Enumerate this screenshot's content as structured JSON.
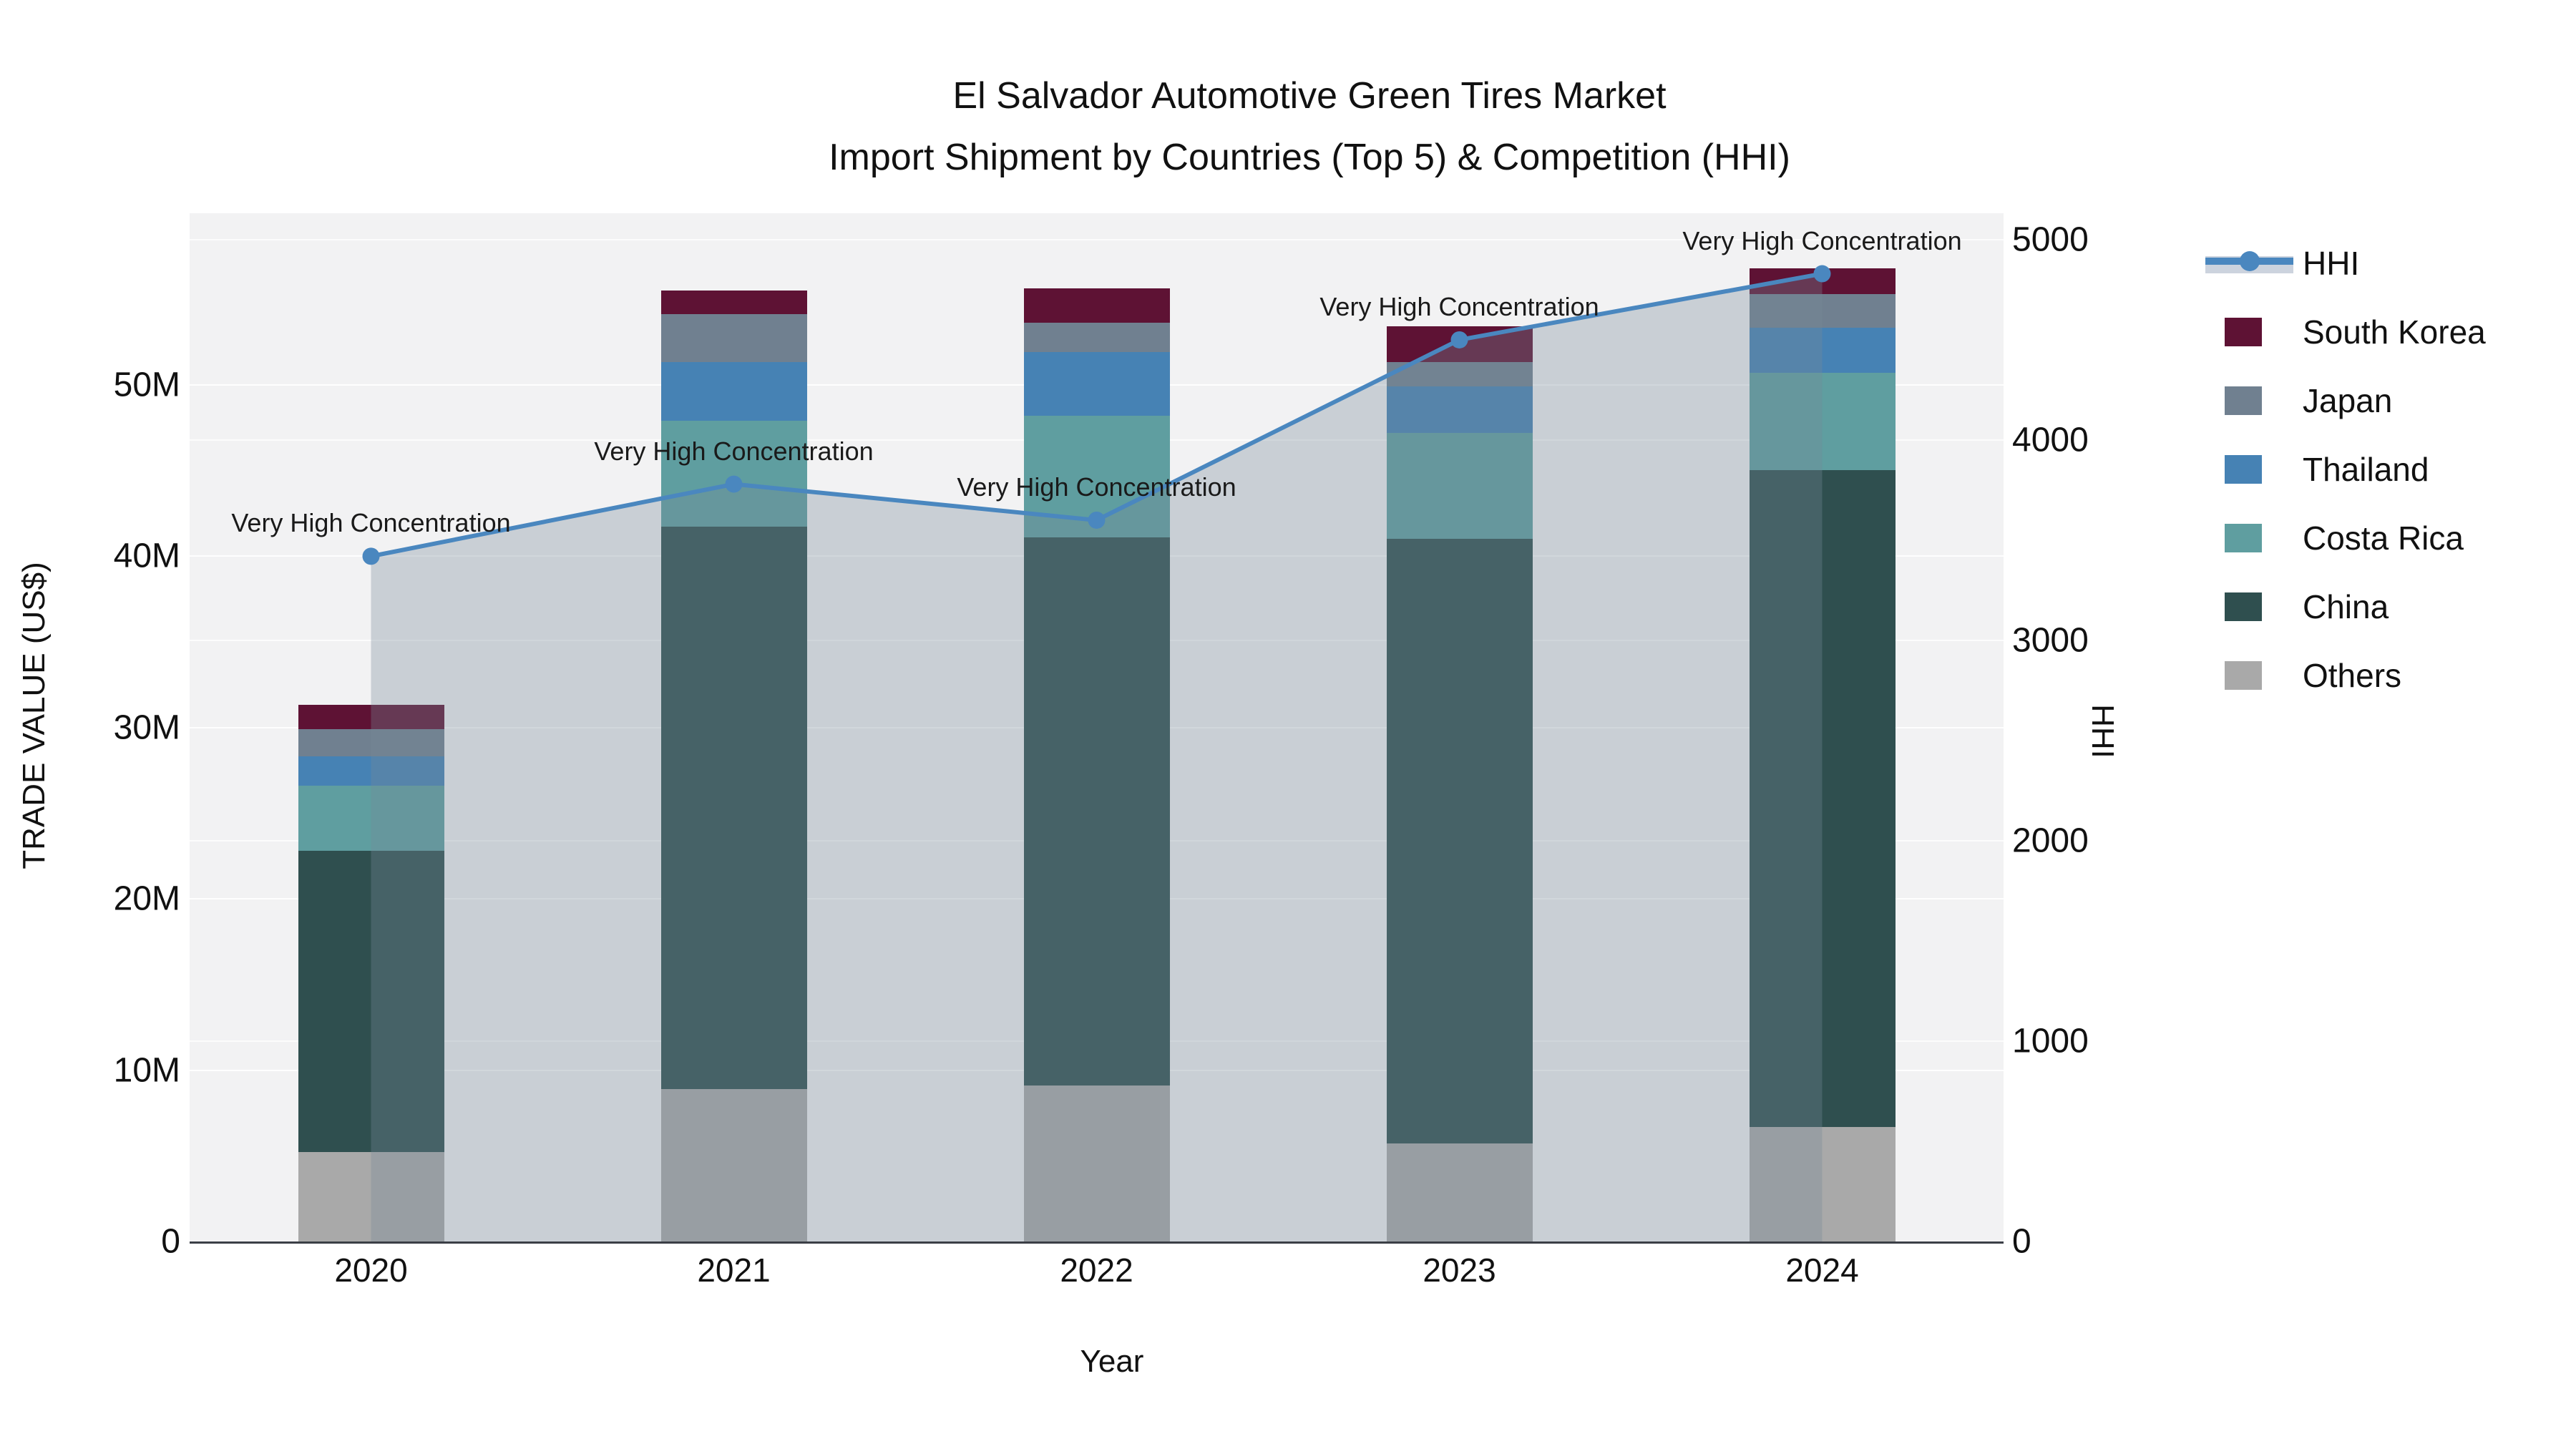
{
  "title": {
    "line1": "El Salvador Automotive Green Tires Market",
    "line2": "Import Shipment by Countries (Top 5) & Competition (HHI)"
  },
  "axes": {
    "x": {
      "title": "Year",
      "categories": [
        "2020",
        "2021",
        "2022",
        "2023",
        "2024"
      ]
    },
    "y_left": {
      "title": "TRADE VALUE (US$)",
      "tick_labels": [
        "0",
        "10M",
        "20M",
        "30M",
        "40M",
        "50M"
      ],
      "tick_values_musd": [
        0,
        10,
        20,
        30,
        40,
        50
      ],
      "range_musd": [
        0,
        60
      ]
    },
    "y_right": {
      "title": "HHI",
      "tick_labels": [
        "0",
        "1000",
        "2000",
        "3000",
        "4000",
        "5000"
      ],
      "tick_values": [
        0,
        1000,
        2000,
        3000,
        4000,
        5000
      ],
      "range": [
        0,
        5132
      ]
    }
  },
  "legend": {
    "items": [
      {
        "label": "HHI",
        "kind": "line",
        "color_key": "hhi_line"
      },
      {
        "label": "South Korea",
        "kind": "swatch",
        "color_key": "south_korea"
      },
      {
        "label": "Japan",
        "kind": "swatch",
        "color_key": "japan"
      },
      {
        "label": "Thailand",
        "kind": "swatch",
        "color_key": "thailand"
      },
      {
        "label": "Costa Rica",
        "kind": "swatch",
        "color_key": "costa_rica"
      },
      {
        "label": "China",
        "kind": "swatch",
        "color_key": "china"
      },
      {
        "label": "Others",
        "kind": "swatch",
        "color_key": "others"
      }
    ]
  },
  "colors": {
    "south_korea": "#5E1234",
    "japan": "#708090",
    "thailand": "#4682B4",
    "costa_rica": "#5F9EA0",
    "china": "#2F4F4F",
    "others": "#A9A9A9",
    "hhi_line": "#4A87BF",
    "hhi_fill": "#778899",
    "hhi_fill_opacity": 0.33,
    "plot_bg": "#F2F2F3",
    "grid": "#FFFFFF",
    "axis_line": "#3B3F46",
    "text": "#111111"
  },
  "chart_data": {
    "type": "bar+line",
    "title": "El Salvador Automotive Green Tires Market — Import Shipment by Countries (Top 5) & Competition (HHI)",
    "categories": [
      "2020",
      "2021",
      "2022",
      "2023",
      "2024"
    ],
    "bar_unit": "million US$",
    "stack_order_bottom_to_top": [
      "Others",
      "China",
      "Costa Rica",
      "Thailand",
      "Japan",
      "South Korea"
    ],
    "series": [
      {
        "name": "Others",
        "color_key": "others",
        "values_musd": [
          5.2,
          8.9,
          9.1,
          5.7,
          6.7
        ]
      },
      {
        "name": "China",
        "color_key": "china",
        "values_musd": [
          17.6,
          32.8,
          32.0,
          35.3,
          38.3
        ]
      },
      {
        "name": "Costa Rica",
        "color_key": "costa_rica",
        "values_musd": [
          3.8,
          6.2,
          7.1,
          6.2,
          5.7
        ]
      },
      {
        "name": "Thailand",
        "color_key": "thailand",
        "values_musd": [
          1.7,
          3.4,
          3.7,
          2.7,
          2.6
        ]
      },
      {
        "name": "Japan",
        "color_key": "japan",
        "values_musd": [
          1.6,
          2.8,
          1.7,
          1.4,
          2.0
        ]
      },
      {
        "name": "South Korea",
        "color_key": "south_korea",
        "values_musd": [
          1.4,
          1.4,
          2.0,
          2.1,
          1.5
        ]
      }
    ],
    "bar_totals_musd": [
      31.3,
      55.5,
      55.6,
      53.4,
      56.8
    ],
    "line_series": {
      "name": "HHI",
      "axis": "right",
      "values": [
        3420,
        3780,
        3600,
        4500,
        4830
      ]
    },
    "annotations": [
      {
        "text": "Very High Concentration",
        "x": "2020"
      },
      {
        "text": "Very High Concentration",
        "x": "2021"
      },
      {
        "text": "Very High Concentration",
        "x": "2022"
      },
      {
        "text": "Very High Concentration",
        "x": "2023"
      },
      {
        "text": "Very High Concentration",
        "x": "2024"
      }
    ],
    "ylim_left_musd": [
      0,
      60
    ],
    "ylim_right": [
      0,
      5132
    ],
    "grid": true,
    "legend_position": "right"
  }
}
